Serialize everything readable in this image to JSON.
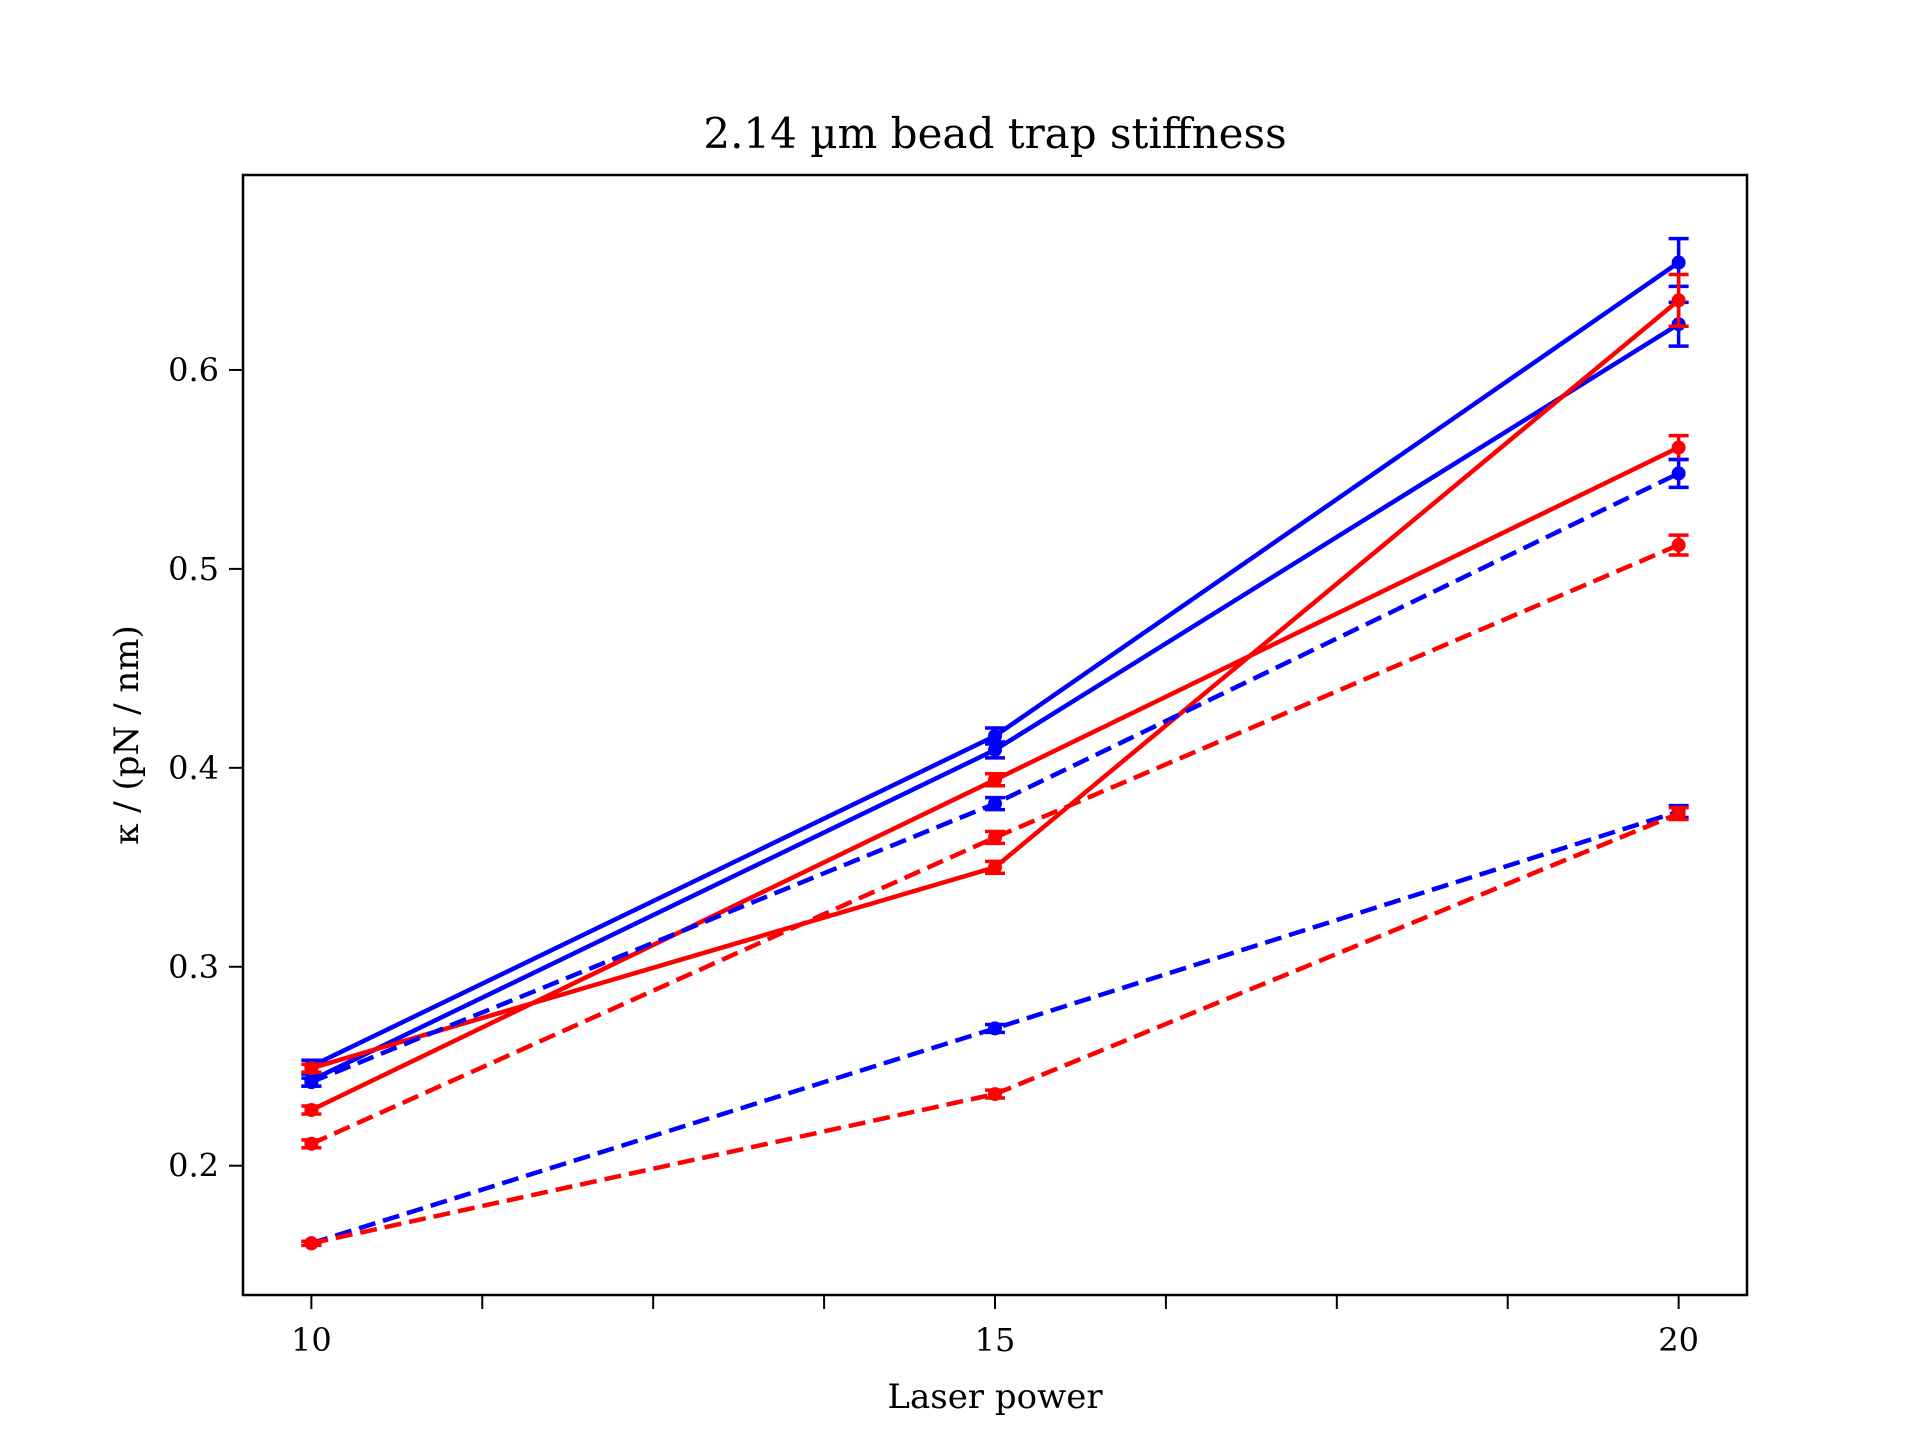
{
  "chart_data": {
    "type": "line",
    "title": "2.14 µm bead trap stiffness",
    "xlabel": "Laser power",
    "ylabel": "κ / (pN / nm)",
    "x": [
      10,
      15,
      20
    ],
    "xlim": [
      9.5,
      20.5
    ],
    "ylim": [
      0.135,
      0.698
    ],
    "x_ticks": [
      10,
      15,
      20
    ],
    "x_minor_ticks": [
      11.25,
      12.5,
      13.75,
      16.25,
      17.5,
      18.75
    ],
    "y_ticks": [
      0.2,
      0.3,
      0.4,
      0.5,
      0.6
    ],
    "x_tick_labels": [
      "10",
      "15",
      "20"
    ],
    "y_tick_labels": [
      "0.2",
      "0.3",
      "0.4",
      "0.5",
      "0.6"
    ],
    "legend": "none",
    "grid": false,
    "series": [
      {
        "color": "#0000ff",
        "style": "solid",
        "values": [
          0.25,
          0.416,
          0.654
        ],
        "errors": [
          0.003,
          0.004,
          0.012
        ]
      },
      {
        "color": "#0000ff",
        "style": "solid",
        "values": [
          0.243,
          0.409,
          0.623
        ],
        "errors": [
          0.003,
          0.004,
          0.011
        ]
      },
      {
        "color": "#ff0000",
        "style": "solid",
        "values": [
          0.249,
          0.35,
          0.635
        ],
        "errors": [
          0.002,
          0.003,
          0.013
        ]
      },
      {
        "color": "#ff0000",
        "style": "solid",
        "values": [
          0.228,
          0.394,
          0.561
        ],
        "errors": [
          0.002,
          0.003,
          0.006
        ]
      },
      {
        "color": "#0000ff",
        "style": "dashed",
        "values": [
          0.242,
          0.382,
          0.548
        ],
        "errors": [
          0.002,
          0.003,
          0.007
        ]
      },
      {
        "color": "#ff0000",
        "style": "dashed",
        "values": [
          0.211,
          0.365,
          0.512
        ],
        "errors": [
          0.002,
          0.003,
          0.005
        ]
      },
      {
        "color": "#0000ff",
        "style": "dashed",
        "values": [
          0.161,
          0.269,
          0.378
        ],
        "errors": [
          0.001,
          0.002,
          0.003
        ]
      },
      {
        "color": "#ff0000",
        "style": "dashed",
        "values": [
          0.161,
          0.236,
          0.377
        ],
        "errors": [
          0.001,
          0.002,
          0.003
        ]
      }
    ]
  }
}
